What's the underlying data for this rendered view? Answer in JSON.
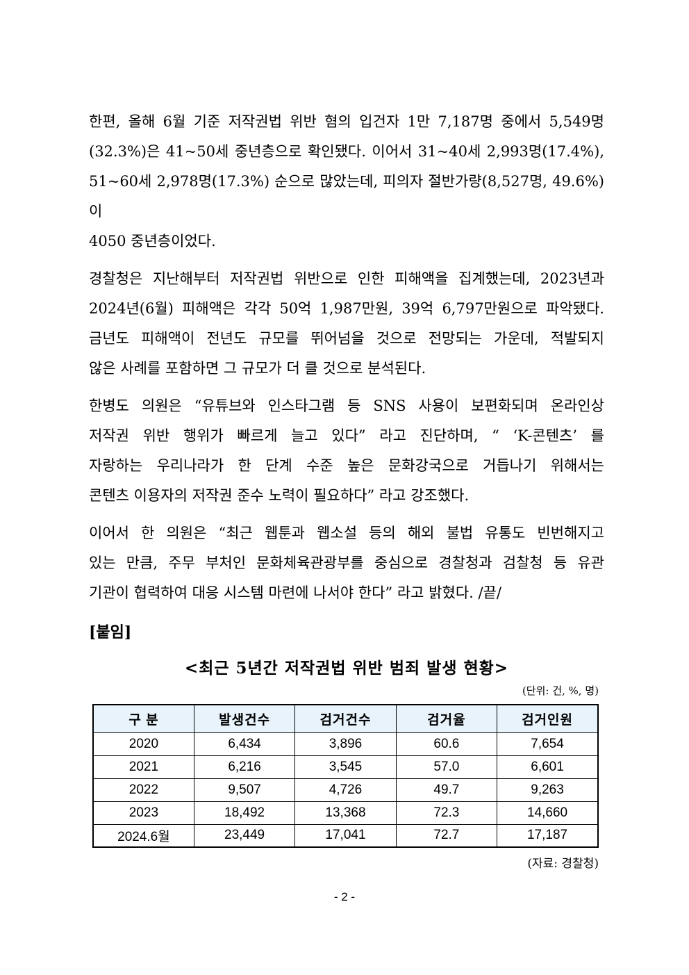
{
  "document": {
    "paragraphs": [
      {
        "lines": [
          "한편, 올해 6월 기준 저작권법 위반 혐의 입건자 1만 7,187명 중에서 5,549명",
          "(32.3%)은 41~50세 중년층으로 확인됐다. 이어서 31~40세 2,993명(17.4%),",
          "51~60세 2,978명(17.3%) 순으로 많았는데, 피의자 절반가량(8,527명, 49.6%)이",
          "4050 중년층이었다."
        ]
      },
      {
        "lines": [
          "경찰청은 지난해부터 저작권법 위반으로 인한 피해액을 집계했는데, 2023년과",
          "2024년(6월) 피해액은 각각 50억 1,987만원, 39억 6,797만원으로 파악됐다.",
          "금년도 피해액이 전년도 규모를 뛰어넘을 것으로 전망되는 가운데, 적발되지",
          "않은 사례를 포함하면 그 규모가 더 클 것으로 분석된다."
        ]
      },
      {
        "lines": [
          "한병도 의원은 “유튜브와 인스타그램 등 SNS 사용이 보편화되며 온라인상",
          "저작권 위반 행위가 빠르게 늘고 있다” 라고 진단하며, “ ‘K-콘텐츠’ 를",
          "자랑하는 우리나라가 한 단계 수준 높은 문화강국으로 거듭나기 위해서는",
          "콘텐츠 이용자의 저작권 준수 노력이 필요하다” 라고 강조했다."
        ]
      },
      {
        "lines": [
          "이어서 한 의원은 “최근 웹툰과 웹소설 등의 해외 불법 유통도 빈번해지고",
          "있는 만큼, 주무 부처인 문화체육관광부를 중심으로 경찰청과 검찰청 등 유관",
          "기관이 협력하여 대응 시스템 마련에 나서야 한다” 라고 밝혔다. /끝/"
        ]
      }
    ],
    "attachment_label": "[붙임]",
    "table_section": {
      "title": "<최근 5년간 저작권법 위반 범죄 발생 현황>",
      "unit_note": "(단위: 건, %, 명)",
      "source_note": "(자료: 경찰청)"
    }
  },
  "table": {
    "headers": [
      "구  분",
      "발생건수",
      "검거건수",
      "검거율",
      "검거인원"
    ],
    "rows": [
      [
        "2020",
        "6,434",
        "3,896",
        "60.6",
        "7,654"
      ],
      [
        "2021",
        "6,216",
        "3,545",
        "57.0",
        "6,601"
      ],
      [
        "2022",
        "9,507",
        "4,726",
        "49.7",
        "9,263"
      ],
      [
        "2023",
        "18,492",
        "13,368",
        "72.3",
        "14,660"
      ],
      [
        "2024.6월",
        "23,449",
        "17,041",
        "72.7",
        "17,187"
      ]
    ]
  },
  "colors": {
    "table_header_bg": "#E8F3FB",
    "table_border": "#000000",
    "text": "#000000"
  },
  "page": {
    "number_label": "- 2 -"
  }
}
